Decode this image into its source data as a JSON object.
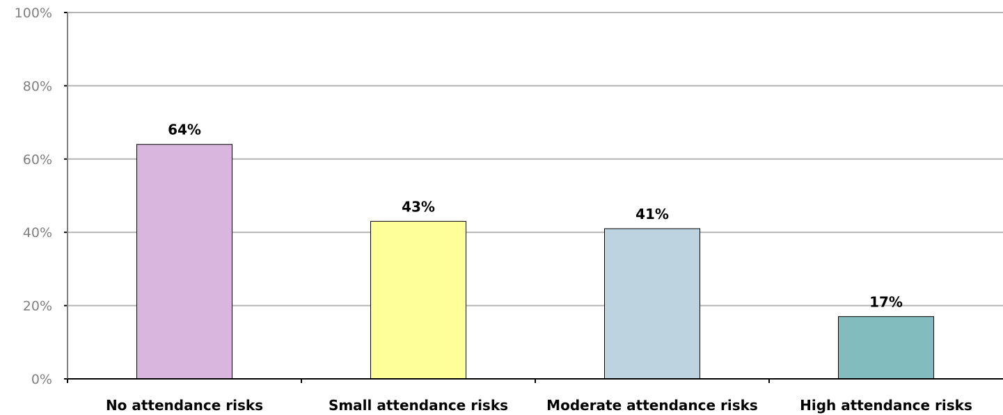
{
  "chart_data": {
    "type": "bar",
    "title": "",
    "xlabel": "",
    "ylabel": "",
    "categories": [
      "No attendance risks",
      "Small attendance risks",
      "Moderate attendance risks",
      "High attendance risks"
    ],
    "values": [
      64,
      43,
      41,
      17
    ],
    "value_labels": [
      "64%",
      "43%",
      "41%",
      "17%"
    ],
    "ylim": [
      0,
      100
    ],
    "yticks": [
      0,
      20,
      40,
      60,
      80,
      100
    ],
    "ytick_labels": [
      "0%",
      "20%",
      "40%",
      "60%",
      "80%",
      "100%"
    ],
    "bar_colors": [
      "#d9b6de",
      "#ffff99",
      "#bdd4e0",
      "#82bcbf"
    ],
    "grid": true,
    "gridline_color": "#b3b3b3",
    "legend": false
  }
}
